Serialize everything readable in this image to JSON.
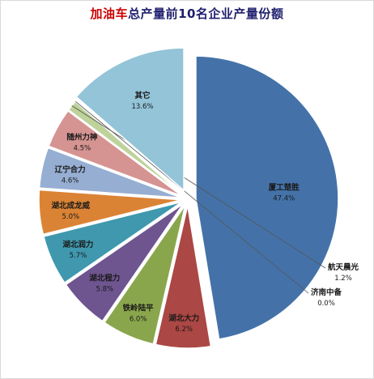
{
  "title": {
    "highlight": "加油车",
    "rest": "总产量前10名企业产量份额"
  },
  "chart_data": {
    "type": "pie",
    "title": "加油车总产量前10名企业产量份额",
    "slices": [
      {
        "name": "厦工楚胜",
        "label": "47.4%",
        "value": 47.4,
        "color": "#4472a8"
      },
      {
        "name": "湖北大力",
        "label": "6.2%",
        "value": 6.2,
        "color": "#ab4744"
      },
      {
        "name": "铁岭陆平",
        "label": "6.0%",
        "value": 6.0,
        "color": "#8aa64c"
      },
      {
        "name": "湖北程力",
        "label": "5.8%",
        "value": 5.8,
        "color": "#6e558f"
      },
      {
        "name": "湖北润力",
        "label": "5.7%",
        "value": 5.7,
        "color": "#3f98ae"
      },
      {
        "name": "湖北成龙威",
        "label": "5.0%",
        "value": 5.0,
        "color": "#db8335"
      },
      {
        "name": "辽宁合力",
        "label": "4.6%",
        "value": 4.6,
        "color": "#97aed3"
      },
      {
        "name": "随州力神",
        "label": "4.5%",
        "value": 4.5,
        "color": "#d59392"
      },
      {
        "name": "航天晨光",
        "label": "1.2%",
        "value": 1.2,
        "color": "#bed29a"
      },
      {
        "name": "济南中备",
        "label": "0.0%",
        "value": 0.0,
        "color": "#b3a4c7"
      },
      {
        "name": "其它",
        "label": "13.6%",
        "value": 13.6,
        "color": "#93c4d8"
      }
    ]
  }
}
